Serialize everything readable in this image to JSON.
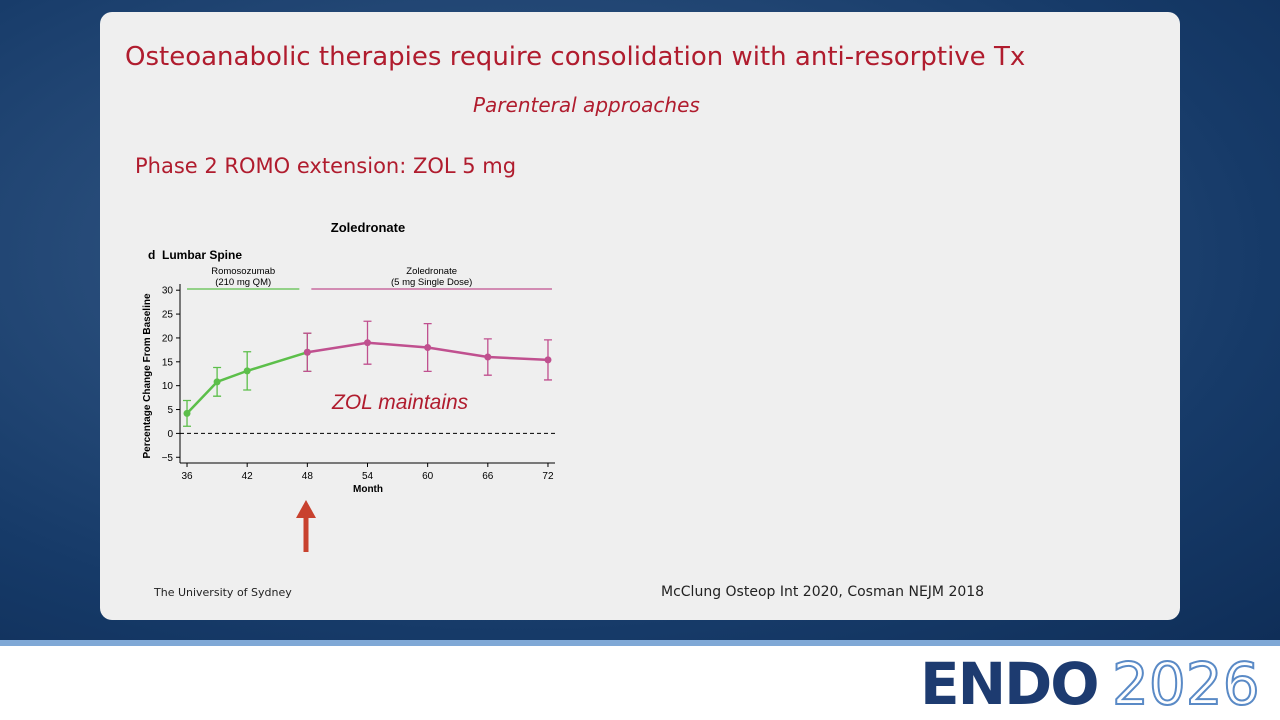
{
  "title": "Osteoanabolic therapies require consolidation with anti-resorptive Tx",
  "subtitle": "Parenteral approaches",
  "heading": "Phase 2 ROMO extension: ZOL 5 mg",
  "chart_data": {
    "type": "line",
    "title": "Zoledronate",
    "panel_label": "d  Lumbar Spine",
    "x_label": "Month",
    "y_label": "Percentage Change From Baseline",
    "xlim": [
      35.3,
      72.7
    ],
    "xticks": [
      36,
      42,
      48,
      54,
      60,
      66,
      72
    ],
    "ylim": [
      -6.2,
      31.3
    ],
    "yticks": [
      {
        "value": -5,
        "label": "−5"
      },
      0,
      5,
      10,
      15,
      20,
      25,
      30
    ],
    "reference_line": 0,
    "series": [
      {
        "name": "Romosozumab",
        "name_detail": "(210 mg QM)",
        "color": "#5cbf4a",
        "x": [
          36,
          39,
          42,
          48
        ],
        "values": [
          4.2,
          10.8,
          13.1,
          17
        ],
        "errors": [
          2.7,
          3,
          4,
          4
        ]
      },
      {
        "name": "Zoledronate",
        "name_detail": "(5 mg Single Dose)",
        "color": "#c0508f",
        "x": [
          48,
          54,
          60,
          66,
          72
        ],
        "values": [
          17,
          19,
          18,
          16,
          15.4
        ],
        "errors": [
          4,
          4.5,
          5,
          3.8,
          4.2
        ]
      }
    ],
    "annotation": "ZOL maintains"
  },
  "footer": {
    "left": "The University of Sydney",
    "right": "McClung Osteop Int 2020, Cosman NEJM 2018"
  },
  "logo": {
    "name": "ENDO",
    "year": "2026"
  }
}
